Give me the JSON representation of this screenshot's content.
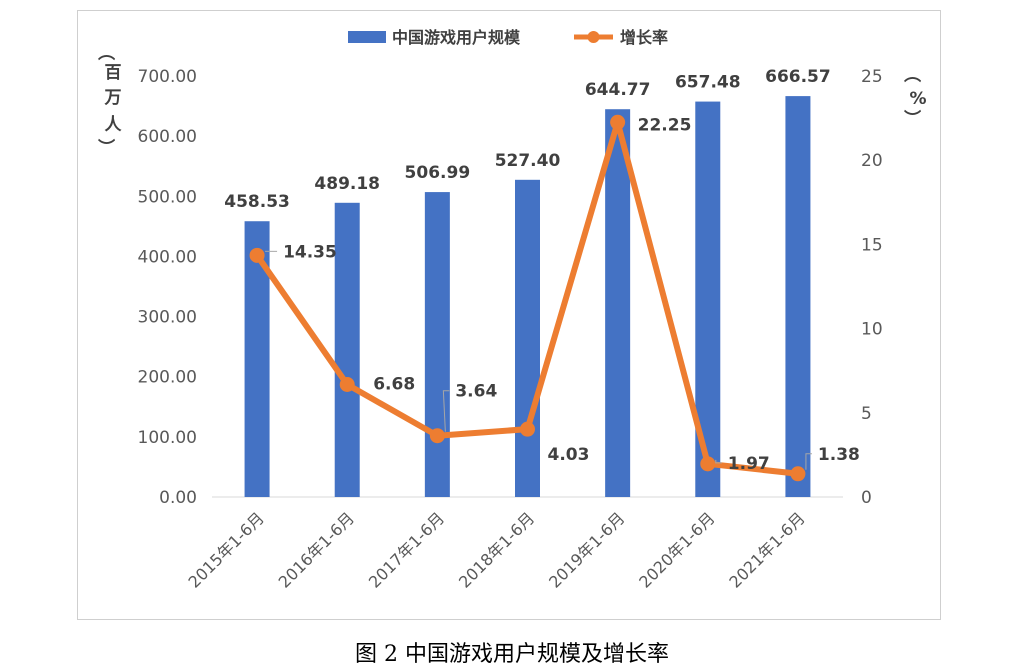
{
  "caption": "图 2 中国游戏用户规模及增长率",
  "chart_data": {
    "type": "bar",
    "categories": [
      "2015年1-6月",
      "2016年1-6月",
      "2017年1-6月",
      "2018年1-6月",
      "2019年1-6月",
      "2020年1-6月",
      "2021年1-6月"
    ],
    "series": [
      {
        "name": "中国游戏用户规模",
        "type": "bar",
        "axis": "left",
        "values": [
          458.53,
          489.18,
          506.99,
          527.4,
          644.77,
          657.48,
          666.57
        ],
        "labels": [
          "458.53",
          "489.18",
          "506.99",
          "527.40",
          "644.77",
          "657.48",
          "666.57"
        ]
      },
      {
        "name": "增长率",
        "type": "line",
        "axis": "right",
        "values": [
          14.35,
          6.68,
          3.64,
          4.03,
          22.25,
          1.97,
          1.38
        ],
        "labels": [
          "14.35",
          "6.68",
          "3.64",
          "4.03",
          "22.25",
          "1.97",
          "1.38"
        ]
      }
    ],
    "ylim_left": [
      0,
      700
    ],
    "ylim_right": [
      0,
      25
    ],
    "left_ticks": [
      "0.00",
      "100.00",
      "200.00",
      "300.00",
      "400.00",
      "500.00",
      "600.00",
      "700.00"
    ],
    "right_ticks": [
      "0",
      "5",
      "10",
      "15",
      "20",
      "25"
    ],
    "left_unit": [
      "（",
      "百",
      "万",
      "人",
      "）"
    ],
    "right_unit": [
      "（",
      "%",
      "）"
    ],
    "legend_position": "top",
    "colors": {
      "bar": "#4472c4",
      "line": "#ed7d31"
    }
  }
}
